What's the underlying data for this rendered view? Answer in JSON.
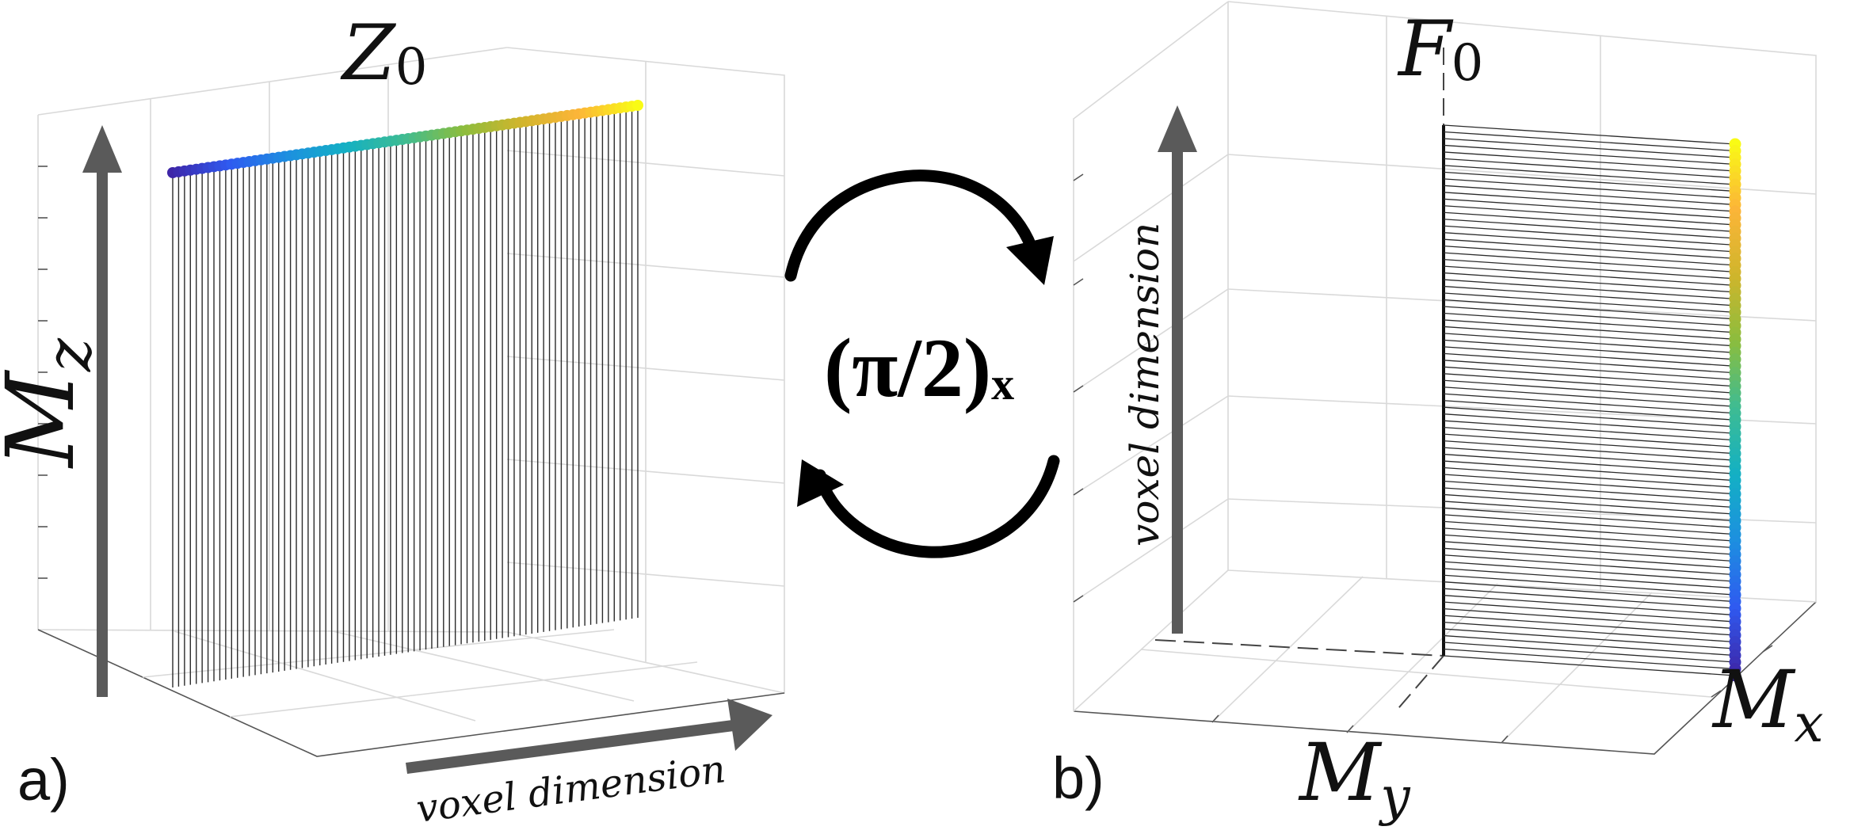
{
  "panel_a": {
    "label": "a)",
    "title_main": "Z",
    "title_sub": "0",
    "vertical_axis_main": "M",
    "vertical_axis_sub": "z",
    "horizontal_arrow_label": "voxel dimension",
    "spin_count": 80
  },
  "center": {
    "label_main": "(π/2)",
    "label_sub": "x"
  },
  "panel_b": {
    "label": "b)",
    "title_main": "F",
    "title_sub": "0",
    "vertical_arrow_label": "voxel dimension",
    "axis_x_main": "M",
    "axis_x_sub": "x",
    "axis_y_main": "M",
    "axis_y_sub": "y",
    "spin_count": 80
  },
  "colors": {
    "colormap": [
      "#3e26a8",
      "#2f5af0",
      "#1d8fe0",
      "#13b0c4",
      "#3ebc93",
      "#8bbd3e",
      "#d0b52c",
      "#fcb538",
      "#f9fb15"
    ],
    "arrow_gray": "#5a5a5a",
    "cycle_arrow": "#000000"
  }
}
